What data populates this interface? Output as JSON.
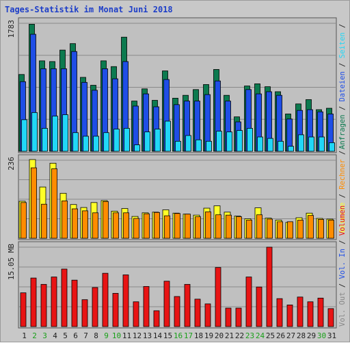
{
  "title": "Tages-Statistik im Monat Juni 2018",
  "colors": {
    "background": "#c8c8c8",
    "plot_bg": "#c0c0c0",
    "anfragen": "#0c7a4f",
    "dateien": "#1f4ee6",
    "seiten": "#21d7f7",
    "besuche": "#ffff28",
    "rechner": "#ff8c00",
    "volumen": "#e81414",
    "weekend_label": "#18a018",
    "day_label": "#202020"
  },
  "chart_data": [
    {
      "type": "bar",
      "panel": "hits",
      "scale_label": "1783",
      "ylim": [
        0,
        1783
      ],
      "categories": [
        "1",
        "2",
        "3",
        "4",
        "5",
        "6",
        "7",
        "8",
        "9",
        "10",
        "11",
        "12",
        "13",
        "14",
        "15",
        "16",
        "17",
        "18",
        "19",
        "20",
        "21",
        "22",
        "23",
        "24",
        "25",
        "26",
        "27",
        "28",
        "29",
        "30",
        "31"
      ],
      "weekend_days": [
        "2",
        "3",
        "9",
        "10",
        "16",
        "17",
        "23",
        "24",
        "30"
      ],
      "series": [
        {
          "name": "Anfragen",
          "values": [
            1070,
            1770,
            1260,
            1250,
            1410,
            1500,
            1030,
            920,
            1260,
            1180,
            1590,
            700,
            870,
            710,
            1120,
            740,
            780,
            860,
            930,
            1140,
            780,
            480,
            910,
            940,
            900,
            830,
            520,
            660,
            720,
            580,
            600
          ]
        },
        {
          "name": "Dateien",
          "values": [
            970,
            1630,
            1150,
            1150,
            1150,
            1390,
            960,
            850,
            1150,
            1010,
            1250,
            630,
            800,
            620,
            1000,
            650,
            700,
            700,
            790,
            980,
            700,
            410,
            860,
            800,
            830,
            780,
            450,
            570,
            580,
            550,
            520
          ]
        },
        {
          "name": "Seiten",
          "values": [
            440,
            540,
            320,
            490,
            510,
            260,
            210,
            210,
            260,
            310,
            320,
            90,
            270,
            310,
            420,
            140,
            220,
            160,
            140,
            280,
            270,
            290,
            320,
            200,
            180,
            140,
            70,
            230,
            200,
            200,
            120
          ]
        }
      ]
    },
    {
      "type": "bar",
      "panel": "visits",
      "scale_label": "236",
      "ylim": [
        0,
        236
      ],
      "categories": [
        "1",
        "2",
        "3",
        "4",
        "5",
        "6",
        "7",
        "8",
        "9",
        "10",
        "11",
        "12",
        "13",
        "14",
        "15",
        "16",
        "17",
        "18",
        "19",
        "20",
        "21",
        "22",
        "23",
        "24",
        "25",
        "26",
        "27",
        "28",
        "29",
        "30",
        "31"
      ],
      "series": [
        {
          "name": "Besuche",
          "values": [
            112,
            238,
            155,
            227,
            136,
            102,
            93,
            108,
            114,
            82,
            90,
            66,
            77,
            79,
            86,
            76,
            73,
            70,
            91,
            98,
            79,
            67,
            59,
            92,
            61,
            55,
            48,
            62,
            76,
            60,
            58
          ]
        },
        {
          "name": "Rechner",
          "values": [
            108,
            213,
            103,
            210,
            113,
            89,
            83,
            77,
            111,
            77,
            77,
            60,
            74,
            78,
            68,
            75,
            73,
            65,
            80,
            71,
            70,
            65,
            55,
            71,
            58,
            50,
            50,
            55,
            69,
            57,
            55
          ]
        }
      ]
    },
    {
      "type": "bar",
      "panel": "volume",
      "scale_label": "15.05 MB",
      "ylim": [
        0,
        15.05
      ],
      "categories": [
        "1",
        "2",
        "3",
        "4",
        "5",
        "6",
        "7",
        "8",
        "9",
        "10",
        "11",
        "12",
        "13",
        "14",
        "15",
        "16",
        "17",
        "18",
        "19",
        "20",
        "21",
        "22",
        "23",
        "24",
        "25",
        "26",
        "27",
        "28",
        "29",
        "30",
        "31"
      ],
      "series": [
        {
          "name": "Volumen",
          "values": [
            6.4,
            9.2,
            8.0,
            9.4,
            10.9,
            8.8,
            5.1,
            7.4,
            10.1,
            6.3,
            9.8,
            4.7,
            7.6,
            3.0,
            8.6,
            5.7,
            8.0,
            5.2,
            4.3,
            11.2,
            3.5,
            3.5,
            9.4,
            7.5,
            15.05,
            5.3,
            4.1,
            5.6,
            4.7,
            5.4,
            3.4
          ]
        }
      ]
    }
  ],
  "legend": {
    "top": [
      "Anfragen",
      " / ",
      "Dateien",
      " / ",
      "Seiten",
      " / "
    ],
    "middle": [
      "Besuche",
      " / ",
      "Rechner",
      " / "
    ],
    "bottom": [
      "Vol. Out",
      " / ",
      "Vol. In",
      " / ",
      "Volumen"
    ]
  }
}
